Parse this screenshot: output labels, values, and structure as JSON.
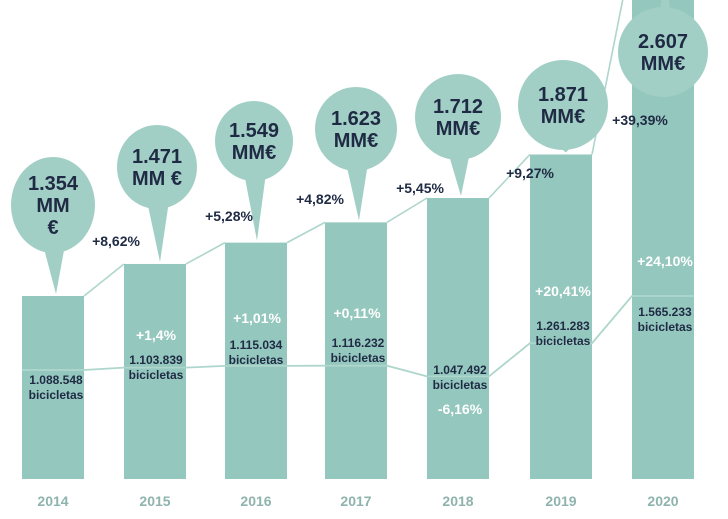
{
  "chart_data": {
    "type": "bar",
    "categories": [
      "2014",
      "2015",
      "2016",
      "2017",
      "2018",
      "2019",
      "2020"
    ],
    "series": [
      {
        "values": [
          1354,
          1471,
          1549,
          1623,
          1712,
          1871,
          2607
        ],
        "value_labels": [
          [
            "1.354",
            "MM",
            "€"
          ],
          [
            "1.471",
            "MM €"
          ],
          [
            "1.549",
            "MM€"
          ],
          [
            "1.623",
            "MM€"
          ],
          [
            "1.712",
            "MM€"
          ],
          [
            "1.871",
            "MM€"
          ],
          [
            "2.607",
            "MM€"
          ]
        ],
        "change_labels": [
          "",
          "+8,62%",
          "+5,28%",
          "+4,82%",
          "+5,45%",
          "+9,27%",
          "+39,39%"
        ]
      },
      {
        "values": [
          1088548,
          1103839,
          1115034,
          1116232,
          1047492,
          1261283,
          1565233
        ],
        "value_labels": [
          "1.088.548",
          "1.103.839",
          "1.115.034",
          "1.116.232",
          "1.047.492",
          "1.261.283",
          "1.565.233"
        ],
        "unit_label": "bicicletas",
        "change_labels": [
          "",
          "+1,4%",
          "+1,01%",
          "+0,11%",
          "-6,16%",
          "+20,41%",
          "+24,10%"
        ]
      }
    ],
    "colors": {
      "bar": "#94c7bd",
      "bubble": "#a2cfc5",
      "line": "#aed6cc",
      "text": "#1f2a44",
      "year": "#8fb3ad"
    }
  }
}
